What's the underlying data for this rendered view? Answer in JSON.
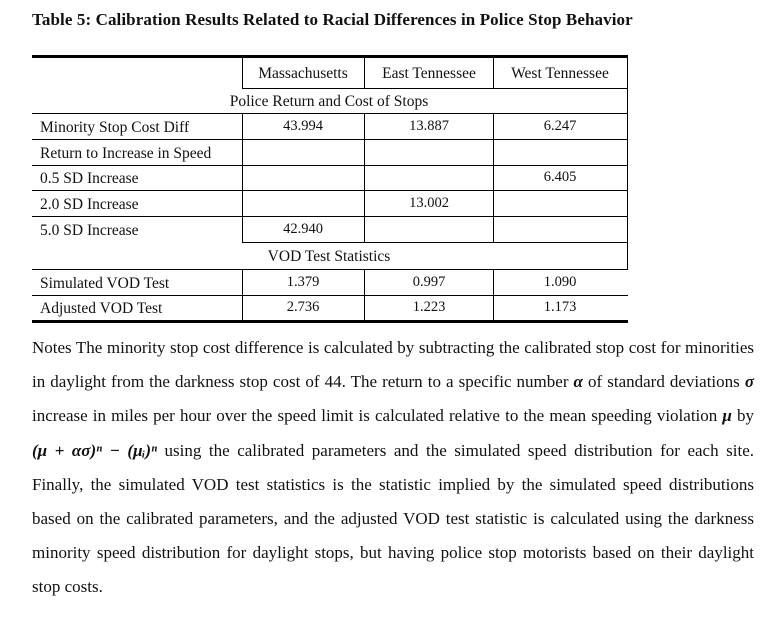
{
  "title": "Table 5: Calibration Results Related to Racial Differences in Police Stop Behavior",
  "table": {
    "columns": [
      "Massachusetts",
      "East Tennessee",
      "West Tennessee"
    ],
    "section1": "Police Return and Cost of Stops",
    "section2": "VOD Test Statistics",
    "rows": [
      {
        "label": "Minority Stop Cost Diff",
        "values": [
          "43.994",
          "13.887",
          "6.247"
        ]
      },
      {
        "label": "Return to Increase in Speed",
        "values": [
          "",
          "",
          ""
        ]
      },
      {
        "label": "0.5 SD Increase",
        "values": [
          "",
          "",
          "6.405"
        ]
      },
      {
        "label": "2.0 SD Increase",
        "values": [
          "",
          "13.002",
          ""
        ]
      },
      {
        "label": "5.0 SD Increase",
        "values": [
          "42.940",
          "",
          ""
        ]
      },
      {
        "label": "Simulated VOD Test",
        "values": [
          "1.379",
          "0.997",
          "1.090"
        ]
      },
      {
        "label": "Adjusted VOD Test",
        "values": [
          "2.736",
          "1.223",
          "1.173"
        ]
      }
    ]
  },
  "notes": {
    "p1": "Notes The minority stop cost difference is calculated by subtracting the calibrated stop cost for minorities in daylight from the darkness stop cost of 44. The return to a specific number",
    "alpha": "α",
    "p2": " of standard deviations ",
    "sigma": "σ",
    "p3": " increase in miles per hour over the speed limit is calculated relative to the mean speeding violation ",
    "mu": "μ",
    "p4": " by ",
    "formula": "(μ + ασ)ⁿ − (μᵢ)ⁿ",
    "p5": " using the calibrated parameters and the simulated speed distribution for each site. Finally, the simulated VOD test statistics is the statistic implied by the simulated speed distributions based on the calibrated parameters, and the adjusted VOD test statistic is calculated using the darkness minority speed distribution for daylight stops, but having police stop motorists based on their daylight stop costs."
  }
}
